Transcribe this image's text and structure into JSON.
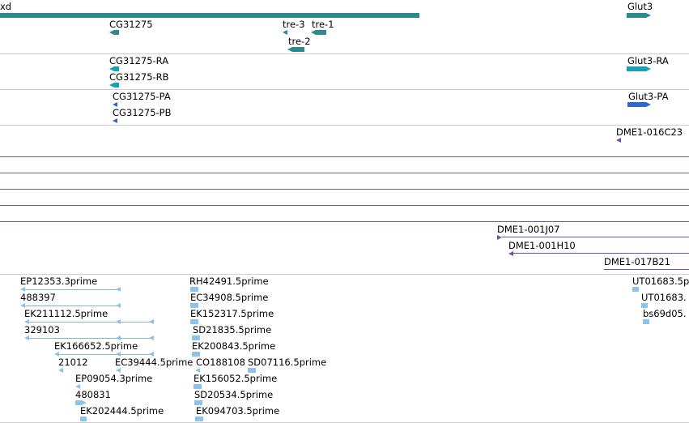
{
  "gene_track": {
    "labels": {
      "g0": "xd",
      "g1": "Glut3",
      "g2": "CG31275",
      "g3": "tre-3",
      "g4": "tre-1",
      "g5": "tre-2"
    }
  },
  "transcript_track": {
    "labels": {
      "t0": "CG31275-RA",
      "t1": "CG31275-RB",
      "t2": "Glut3-RA"
    }
  },
  "protein_track": {
    "labels": {
      "p0": "CG31275-PA",
      "p1": "CG31275-PB",
      "p2": "Glut3-PA"
    }
  },
  "clone_track": {
    "labels": {
      "c0": "DME1-016C23",
      "c1": "DME1-001J07",
      "c2": "DME1-001H10",
      "c3": "DME1-017B21"
    }
  },
  "est_track": {
    "labels": {
      "e0": "EP12353.3prime",
      "e1": "488397",
      "e2": "EK211112.5prime",
      "e3": "329103",
      "e4": "EK166652.5prime",
      "e5": "21012",
      "e6": "EC39444.5prime",
      "e7": "EP09054.3prime",
      "e8": "480831",
      "e9": "EK202444.5prime",
      "e10": "RH42491.5prime",
      "e11": "EC34908.5prime",
      "e12": "EK152317.5prime",
      "e13": "SD21835.5prime",
      "e14": "EK200843.5prime",
      "e15": "CO188108",
      "e16": "SD07116.5prime",
      "e17": "EK156052.5prime",
      "e18": "SD20534.5prime",
      "e19": "EK094703.5prime",
      "e20": "UT01683.5p",
      "e21": "UT01683.",
      "e22": "bs69d05."
    }
  },
  "colors": {
    "gene": "#2c8a8a",
    "transcript": "#1aa0b2",
    "protein": "#3366cc",
    "clone": "#6f4fa8",
    "est": "#8dc3e6",
    "separator": "#cfcfcf"
  }
}
